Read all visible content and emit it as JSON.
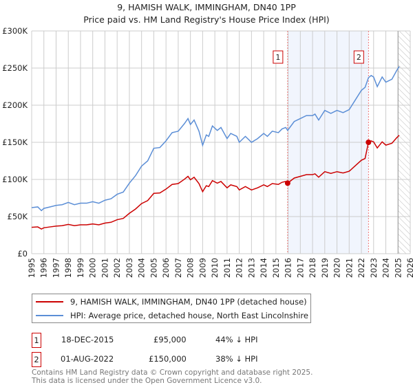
{
  "chart_data": {
    "type": "line",
    "title": "9, HAMISH WALK, IMMINGHAM, DN40 1PP",
    "subtitle": "Price paid vs. HM Land Registry's House Price Index (HPI)",
    "xlim": [
      1995,
      2026
    ],
    "ylim": [
      0,
      300000
    ],
    "yticks": [
      {
        "v": 0,
        "label": "£0"
      },
      {
        "v": 50000,
        "label": "£50K"
      },
      {
        "v": 100000,
        "label": "£100K"
      },
      {
        "v": 150000,
        "label": "£150K"
      },
      {
        "v": 200000,
        "label": "£200K"
      },
      {
        "v": 250000,
        "label": "£250K"
      },
      {
        "v": 300000,
        "label": "£300K"
      }
    ],
    "xticks": [
      "1995",
      "1996",
      "1997",
      "1998",
      "1999",
      "2000",
      "2001",
      "2002",
      "2003",
      "2004",
      "2005",
      "2006",
      "2007",
      "2008",
      "2009",
      "2010",
      "2011",
      "2012",
      "2013",
      "2014",
      "2015",
      "2016",
      "2017",
      "2018",
      "2019",
      "2020",
      "2021",
      "2022",
      "2023",
      "2024",
      "2025",
      "2026"
    ],
    "grid": true,
    "forecast_hatch_from": 2025.0,
    "series": [
      {
        "name": "HPI: Average price, detached house, North East Lincolnshire",
        "color": "#5b8ed6",
        "points": [
          [
            1995,
            62000
          ],
          [
            1995.5,
            63000
          ],
          [
            1995.8,
            58000
          ],
          [
            1996,
            61000
          ],
          [
            1996.5,
            63000
          ],
          [
            1997,
            65000
          ],
          [
            1997.5,
            66000
          ],
          [
            1998,
            69000
          ],
          [
            1998.5,
            66000
          ],
          [
            1999,
            68000
          ],
          [
            1999.5,
            68000
          ],
          [
            2000,
            70000
          ],
          [
            2000.5,
            68000
          ],
          [
            2001,
            72000
          ],
          [
            2001.5,
            74000
          ],
          [
            2002,
            80000
          ],
          [
            2002.5,
            83000
          ],
          [
            2003,
            95000
          ],
          [
            2003.5,
            105000
          ],
          [
            2004,
            118000
          ],
          [
            2004.5,
            125000
          ],
          [
            2005,
            142000
          ],
          [
            2005.5,
            143000
          ],
          [
            2006,
            152000
          ],
          [
            2006.5,
            163000
          ],
          [
            2007,
            165000
          ],
          [
            2007.5,
            175000
          ],
          [
            2007.8,
            182000
          ],
          [
            2008,
            174000
          ],
          [
            2008.3,
            180000
          ],
          [
            2008.7,
            165000
          ],
          [
            2009,
            146000
          ],
          [
            2009.3,
            160000
          ],
          [
            2009.5,
            158000
          ],
          [
            2009.8,
            172000
          ],
          [
            2010.2,
            166000
          ],
          [
            2010.5,
            170000
          ],
          [
            2011,
            155000
          ],
          [
            2011.3,
            162000
          ],
          [
            2011.8,
            158000
          ],
          [
            2012,
            150000
          ],
          [
            2012.5,
            158000
          ],
          [
            2013,
            150000
          ],
          [
            2013.5,
            155000
          ],
          [
            2014,
            162000
          ],
          [
            2014.3,
            158000
          ],
          [
            2014.7,
            165000
          ],
          [
            2015.2,
            163000
          ],
          [
            2015.5,
            168000
          ],
          [
            2015.8,
            170000
          ],
          [
            2015.96,
            166000
          ],
          [
            2016.5,
            178000
          ],
          [
            2017,
            182000
          ],
          [
            2017.5,
            186000
          ],
          [
            2018,
            186000
          ],
          [
            2018.2,
            188000
          ],
          [
            2018.5,
            180000
          ],
          [
            2019,
            193000
          ],
          [
            2019.5,
            189000
          ],
          [
            2020,
            193000
          ],
          [
            2020.5,
            190000
          ],
          [
            2021,
            194000
          ],
          [
            2021.5,
            207000
          ],
          [
            2022,
            220000
          ],
          [
            2022.3,
            224000
          ],
          [
            2022.58,
            237000
          ],
          [
            2022.8,
            240000
          ],
          [
            2023,
            238000
          ],
          [
            2023.3,
            225000
          ],
          [
            2023.7,
            238000
          ],
          [
            2024,
            231000
          ],
          [
            2024.5,
            235000
          ],
          [
            2024.9,
            247000
          ],
          [
            2025.1,
            252000
          ]
        ]
      },
      {
        "name": "9, HAMISH WALK, IMMINGHAM, DN40 1PP (detached house)",
        "color": "#cc0000",
        "derived_from_hpi_and_sales": true
      }
    ],
    "sales": [
      {
        "id": "1",
        "x": 2015.96,
        "date": "18-DEC-2015",
        "price": 95000,
        "price_label": "£95,000",
        "hpi_note": "44% ↓ HPI"
      },
      {
        "id": "2",
        "x": 2022.58,
        "date": "01-AUG-2022",
        "price": 150000,
        "price_label": "£150,000",
        "hpi_note": "38% ↓ HPI"
      }
    ],
    "legend": [
      "9, HAMISH WALK, IMMINGHAM, DN40 1PP (detached house)",
      "HPI: Average price, detached house, North East Lincolnshire"
    ]
  },
  "footer": [
    "Contains HM Land Registry data © Crown copyright and database right 2025.",
    "This data is licensed under the Open Government Licence v3.0."
  ]
}
